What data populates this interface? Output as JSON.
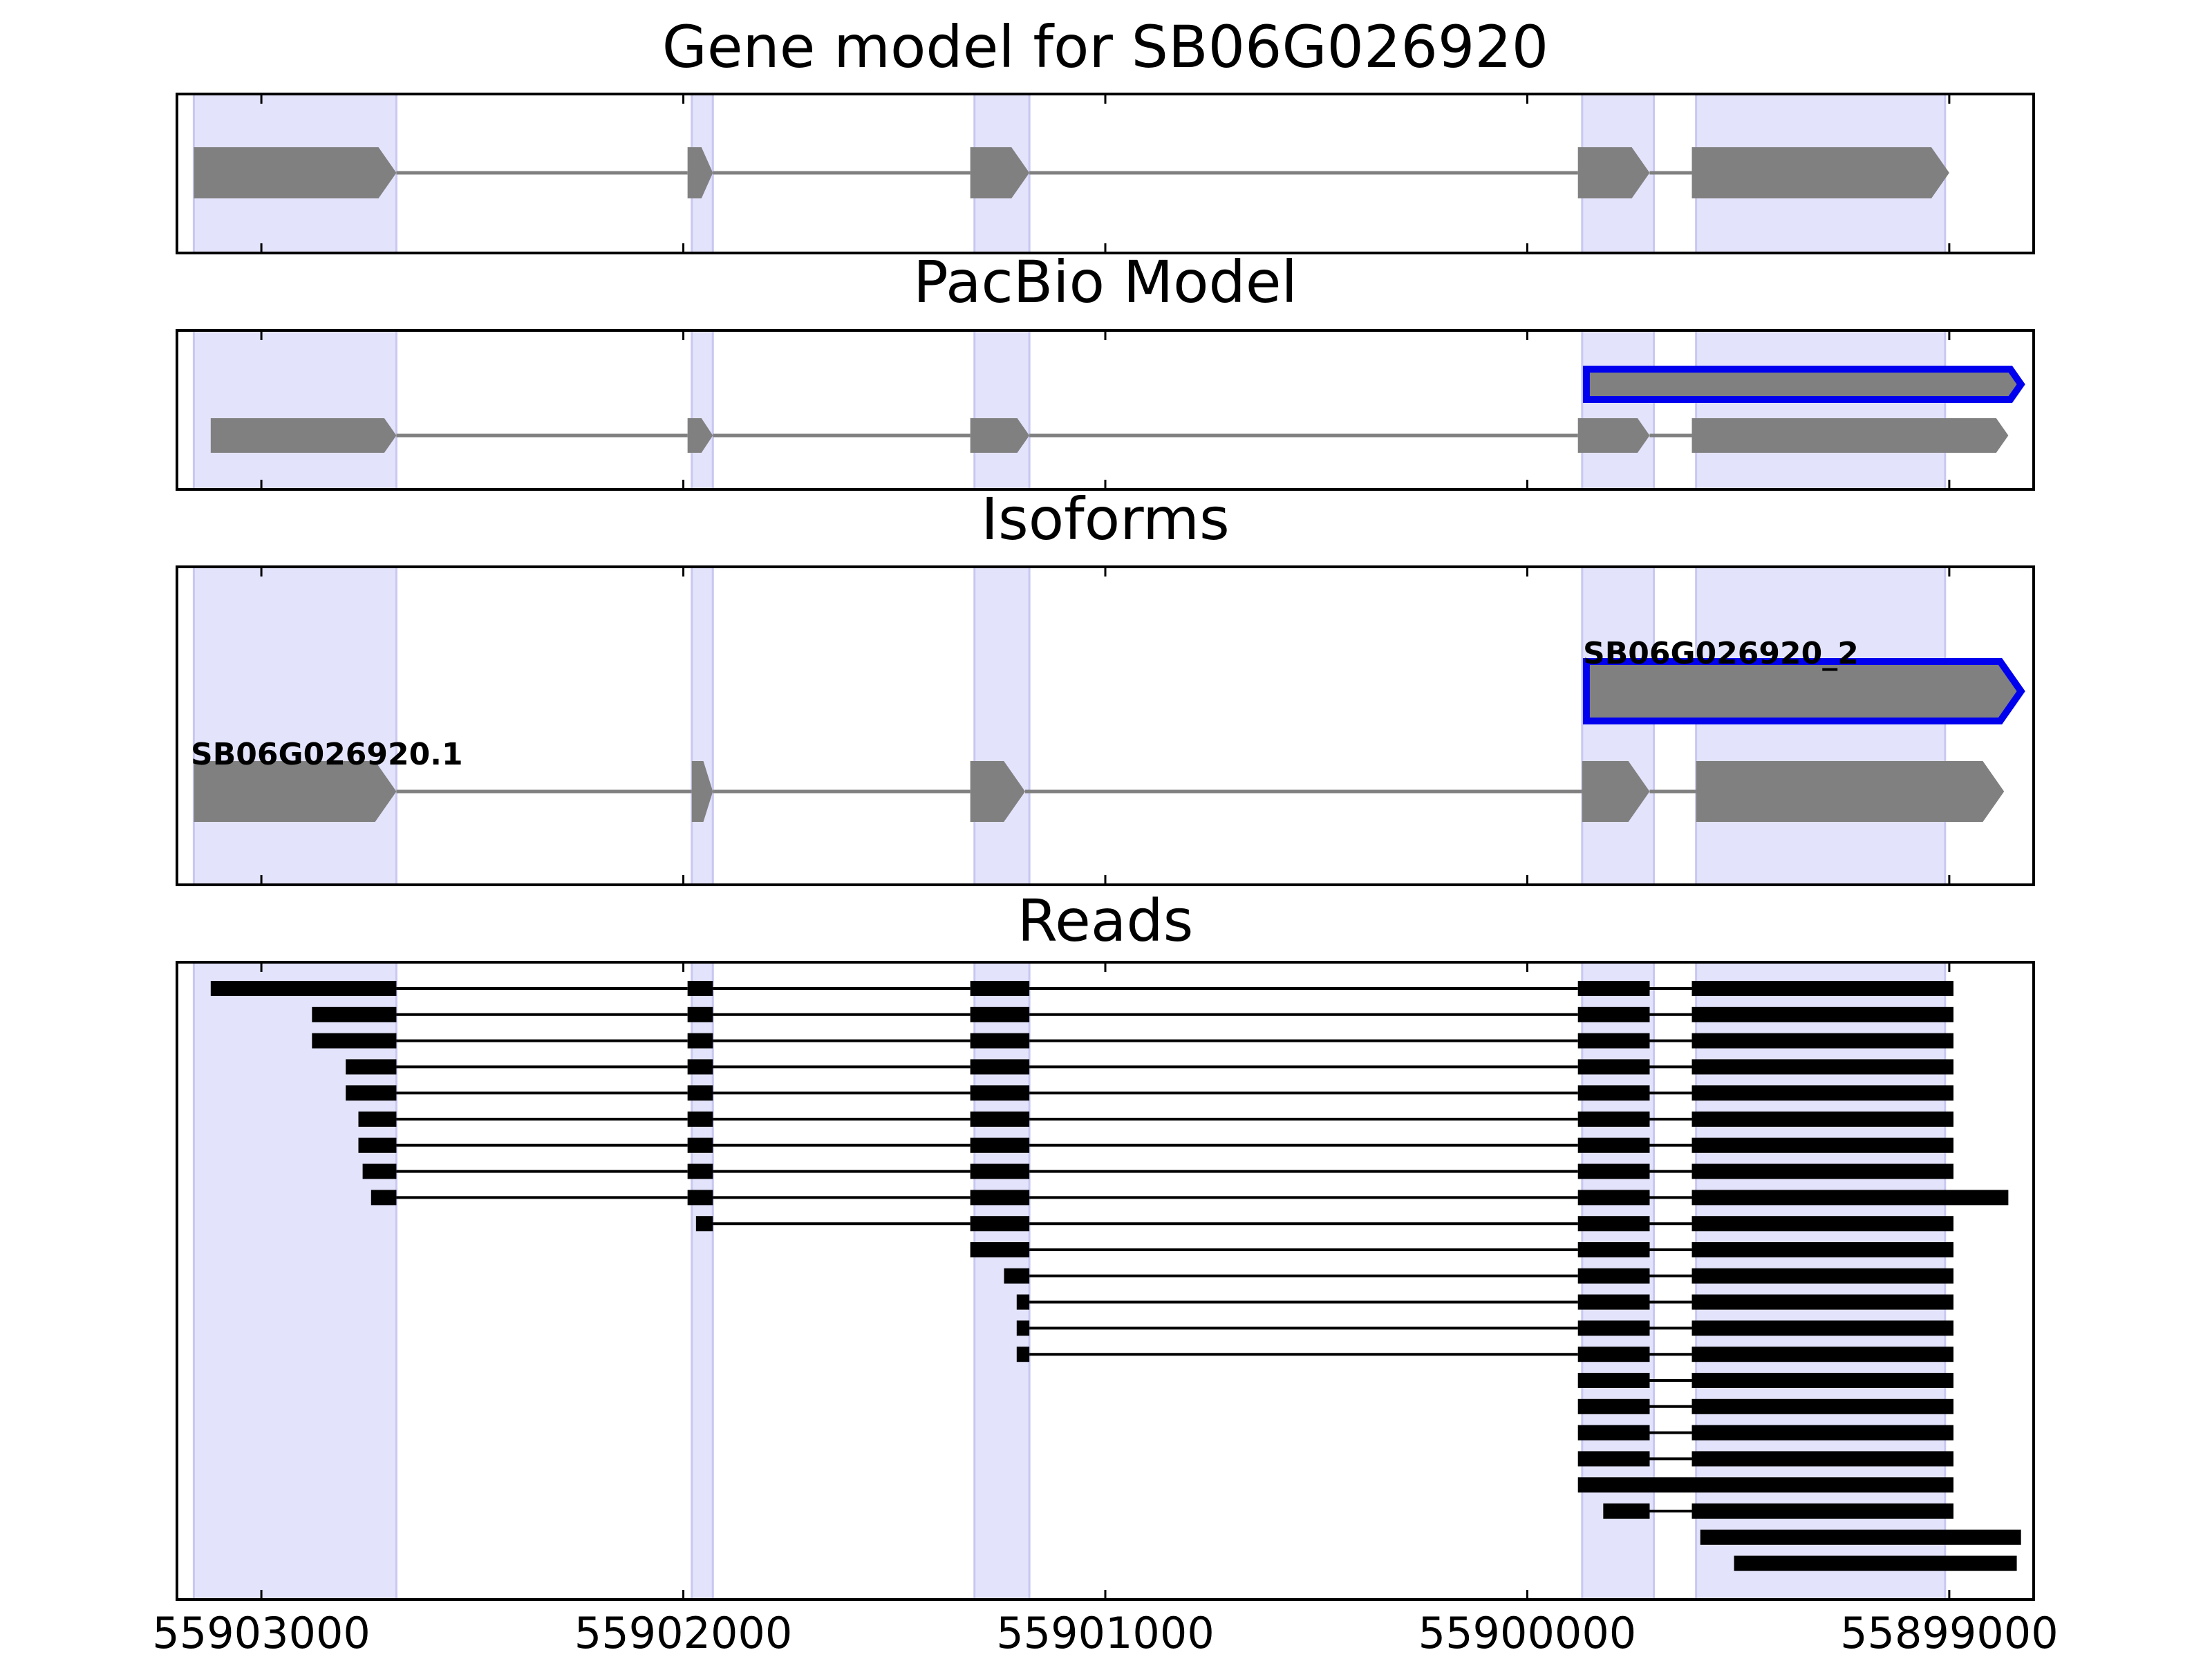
{
  "chart_data": {
    "type": "gene-track",
    "axis": {
      "xlim": [
        55903200,
        55898800
      ],
      "ticks": [
        55903000,
        55902000,
        55901000,
        55900000,
        55899000
      ],
      "tick_labels": [
        "55903000",
        "55902000",
        "55901000",
        "55900000",
        "55899000"
      ]
    },
    "colors": {
      "exon": "#808080",
      "highlight_fill": "#e3e3fb",
      "highlight_stroke": "#c8c8f2",
      "isoform_outline": "#0000ee",
      "read": "#000000",
      "intron": "#808080"
    },
    "highlight_regions": [
      [
        55903160,
        55902680
      ],
      [
        55901980,
        55901930
      ],
      [
        55901310,
        55901180
      ],
      [
        55899870,
        55899700
      ],
      [
        55899600,
        55899010
      ]
    ],
    "panels": [
      {
        "id": "gene-model",
        "title": "Gene model for SB06G026920",
        "tracks": [
          {
            "label": "",
            "outline": false,
            "exons": [
              [
                55903160,
                55902680
              ],
              [
                55901990,
                55901930
              ],
              [
                55901320,
                55901180
              ],
              [
                55899880,
                55899710
              ],
              [
                55899610,
                55899000
              ]
            ]
          }
        ]
      },
      {
        "id": "pacbio-model",
        "title": "PacBio Model",
        "tracks": [
          {
            "label": "",
            "outline": true,
            "exons": [
              [
                55899860,
                55898830
              ]
            ]
          },
          {
            "label": "",
            "outline": false,
            "exons": [
              [
                55903120,
                55902680
              ],
              [
                55901990,
                55901930
              ],
              [
                55901320,
                55901180
              ],
              [
                55899880,
                55899710
              ],
              [
                55899610,
                55898860
              ]
            ]
          }
        ]
      },
      {
        "id": "isoforms",
        "title": "Isoforms",
        "tracks": [
          {
            "label": "SB06G026920_2",
            "outline": true,
            "exons": [
              [
                55899860,
                55898830
              ]
            ]
          },
          {
            "label": "SB06G026920.1",
            "outline": false,
            "exons": [
              [
                55903160,
                55902680
              ],
              [
                55901980,
                55901930
              ],
              [
                55901320,
                55901190
              ],
              [
                55899870,
                55899710
              ],
              [
                55899600,
                55898870
              ]
            ]
          }
        ]
      },
      {
        "id": "reads",
        "title": "Reads",
        "reads": [
          [
            [
              55903120,
              55902680
            ],
            [
              55901990,
              55901930
            ],
            [
              55901320,
              55901180
            ],
            [
              55899880,
              55899710
            ],
            [
              55899610,
              55898990
            ]
          ],
          [
            [
              55902880,
              55902680
            ],
            [
              55901990,
              55901930
            ],
            [
              55901320,
              55901180
            ],
            [
              55899880,
              55899710
            ],
            [
              55899610,
              55898990
            ]
          ],
          [
            [
              55902880,
              55902680
            ],
            [
              55901990,
              55901930
            ],
            [
              55901320,
              55901180
            ],
            [
              55899880,
              55899710
            ],
            [
              55899610,
              55898990
            ]
          ],
          [
            [
              55902800,
              55902680
            ],
            [
              55901990,
              55901930
            ],
            [
              55901320,
              55901180
            ],
            [
              55899880,
              55899710
            ],
            [
              55899610,
              55898990
            ]
          ],
          [
            [
              55902800,
              55902680
            ],
            [
              55901990,
              55901930
            ],
            [
              55901320,
              55901180
            ],
            [
              55899880,
              55899710
            ],
            [
              55899610,
              55898990
            ]
          ],
          [
            [
              55902770,
              55902680
            ],
            [
              55901990,
              55901930
            ],
            [
              55901320,
              55901180
            ],
            [
              55899880,
              55899710
            ],
            [
              55899610,
              55898990
            ]
          ],
          [
            [
              55902770,
              55902680
            ],
            [
              55901990,
              55901930
            ],
            [
              55901320,
              55901180
            ],
            [
              55899880,
              55899710
            ],
            [
              55899610,
              55898990
            ]
          ],
          [
            [
              55902760,
              55902680
            ],
            [
              55901990,
              55901930
            ],
            [
              55901320,
              55901180
            ],
            [
              55899880,
              55899710
            ],
            [
              55899610,
              55898990
            ]
          ],
          [
            [
              55902740,
              55902680
            ],
            [
              55901990,
              55901930
            ],
            [
              55901320,
              55901180
            ],
            [
              55899880,
              55899710
            ],
            [
              55899610,
              55898860
            ]
          ],
          [
            [
              55901970,
              55901930
            ],
            [
              55901320,
              55901180
            ],
            [
              55899880,
              55899710
            ],
            [
              55899610,
              55898990
            ]
          ],
          [
            [
              55901320,
              55901180
            ],
            [
              55899880,
              55899710
            ],
            [
              55899610,
              55898990
            ]
          ],
          [
            [
              55901240,
              55901180
            ],
            [
              55899880,
              55899710
            ],
            [
              55899610,
              55898990
            ]
          ],
          [
            [
              55901210,
              55901180
            ],
            [
              55899880,
              55899710
            ],
            [
              55899610,
              55898990
            ]
          ],
          [
            [
              55901210,
              55901180
            ],
            [
              55899880,
              55899710
            ],
            [
              55899610,
              55898990
            ]
          ],
          [
            [
              55901210,
              55901180
            ],
            [
              55899880,
              55899710
            ],
            [
              55899610,
              55898990
            ]
          ],
          [
            [
              55899880,
              55899710
            ],
            [
              55899610,
              55898990
            ]
          ],
          [
            [
              55899880,
              55899710
            ],
            [
              55899610,
              55898990
            ]
          ],
          [
            [
              55899880,
              55899710
            ],
            [
              55899610,
              55898990
            ]
          ],
          [
            [
              55899880,
              55899710
            ],
            [
              55899610,
              55898990
            ]
          ],
          [
            [
              55899880,
              55898990
            ]
          ],
          [
            [
              55899820,
              55899710
            ],
            [
              55899610,
              55898990
            ]
          ],
          [
            [
              55899590,
              55898830
            ]
          ],
          [
            [
              55899510,
              55898840
            ]
          ]
        ]
      }
    ]
  }
}
